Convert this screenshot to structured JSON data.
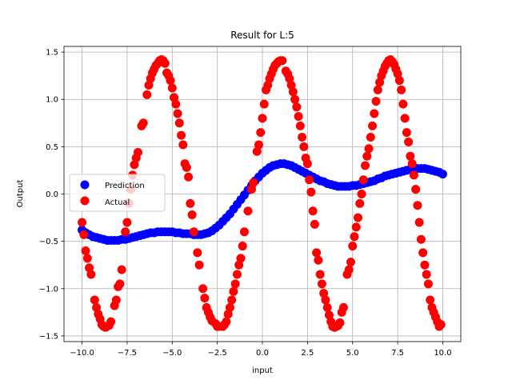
{
  "chart_data": {
    "type": "scatter",
    "title": "Result for L:5",
    "xlabel": "input",
    "ylabel": "Output",
    "xlim": [
      -11.0,
      11.0
    ],
    "ylim": [
      -1.56,
      1.56
    ],
    "xticks": [
      -10.0,
      -7.5,
      -5.0,
      -2.5,
      0.0,
      2.5,
      5.0,
      7.5,
      10.0
    ],
    "xtick_labels": [
      "−10.0",
      "−7.5",
      "−5.0",
      "−2.5",
      "0.0",
      "2.5",
      "5.0",
      "7.5",
      "10.0"
    ],
    "yticks": [
      -1.5,
      -1.0,
      -0.5,
      0.0,
      0.5,
      1.0,
      1.5
    ],
    "ytick_labels": [
      "−1.5",
      "−1.0",
      "−0.5",
      "0.0",
      "0.5",
      "1.0",
      "1.5"
    ],
    "grid": true,
    "legend_position": "center-left",
    "series": [
      {
        "name": "Prediction",
        "color": "#0000ff",
        "points": [
          [
            -10.0,
            -0.38
          ],
          [
            -9.8,
            -0.41
          ],
          [
            -9.6,
            -0.43
          ],
          [
            -9.4,
            -0.45
          ],
          [
            -9.2,
            -0.46
          ],
          [
            -9.0,
            -0.47
          ],
          [
            -8.8,
            -0.48
          ],
          [
            -8.6,
            -0.49
          ],
          [
            -8.4,
            -0.49
          ],
          [
            -8.2,
            -0.49
          ],
          [
            -8.0,
            -0.49
          ],
          [
            -7.8,
            -0.48
          ],
          [
            -7.6,
            -0.48
          ],
          [
            -7.4,
            -0.47
          ],
          [
            -7.2,
            -0.46
          ],
          [
            -7.0,
            -0.45
          ],
          [
            -6.8,
            -0.44
          ],
          [
            -6.6,
            -0.43
          ],
          [
            -6.4,
            -0.42
          ],
          [
            -6.2,
            -0.41
          ],
          [
            -6.0,
            -0.41
          ],
          [
            -5.8,
            -0.4
          ],
          [
            -5.6,
            -0.4
          ],
          [
            -5.4,
            -0.4
          ],
          [
            -5.2,
            -0.4
          ],
          [
            -5.0,
            -0.4
          ],
          [
            -4.8,
            -0.41
          ],
          [
            -4.6,
            -0.41
          ],
          [
            -4.4,
            -0.42
          ],
          [
            -4.2,
            -0.42
          ],
          [
            -4.0,
            -0.42
          ],
          [
            -3.8,
            -0.43
          ],
          [
            -3.6,
            -0.43
          ],
          [
            -3.4,
            -0.43
          ],
          [
            -3.2,
            -0.42
          ],
          [
            -3.0,
            -0.41
          ],
          [
            -2.8,
            -0.39
          ],
          [
            -2.6,
            -0.36
          ],
          [
            -2.4,
            -0.33
          ],
          [
            -2.2,
            -0.29
          ],
          [
            -2.0,
            -0.25
          ],
          [
            -1.8,
            -0.21
          ],
          [
            -1.6,
            -0.16
          ],
          [
            -1.4,
            -0.11
          ],
          [
            -1.2,
            -0.06
          ],
          [
            -1.0,
            -0.01
          ],
          [
            -0.8,
            0.04
          ],
          [
            -0.6,
            0.09
          ],
          [
            -0.4,
            0.14
          ],
          [
            -0.2,
            0.18
          ],
          [
            0.0,
            0.22
          ],
          [
            0.2,
            0.25
          ],
          [
            0.4,
            0.28
          ],
          [
            0.6,
            0.3
          ],
          [
            0.8,
            0.31
          ],
          [
            1.0,
            0.32
          ],
          [
            1.2,
            0.32
          ],
          [
            1.4,
            0.31
          ],
          [
            1.6,
            0.3
          ],
          [
            1.8,
            0.28
          ],
          [
            2.0,
            0.26
          ],
          [
            2.2,
            0.24
          ],
          [
            2.4,
            0.22
          ],
          [
            2.6,
            0.2
          ],
          [
            2.8,
            0.18
          ],
          [
            3.0,
            0.16
          ],
          [
            3.2,
            0.14
          ],
          [
            3.4,
            0.13
          ],
          [
            3.6,
            0.11
          ],
          [
            3.8,
            0.1
          ],
          [
            4.0,
            0.09
          ],
          [
            4.2,
            0.08
          ],
          [
            4.4,
            0.08
          ],
          [
            4.6,
            0.08
          ],
          [
            4.8,
            0.08
          ],
          [
            5.0,
            0.09
          ],
          [
            5.2,
            0.09
          ],
          [
            5.4,
            0.1
          ],
          [
            5.6,
            0.11
          ],
          [
            5.8,
            0.12
          ],
          [
            6.0,
            0.13
          ],
          [
            6.2,
            0.14
          ],
          [
            6.4,
            0.16
          ],
          [
            6.6,
            0.17
          ],
          [
            6.8,
            0.19
          ],
          [
            7.0,
            0.2
          ],
          [
            7.2,
            0.21
          ],
          [
            7.4,
            0.22
          ],
          [
            7.6,
            0.23
          ],
          [
            7.8,
            0.24
          ],
          [
            8.0,
            0.25
          ],
          [
            8.2,
            0.26
          ],
          [
            8.4,
            0.27
          ],
          [
            8.6,
            0.27
          ],
          [
            8.8,
            0.27
          ],
          [
            9.0,
            0.27
          ],
          [
            9.2,
            0.26
          ],
          [
            9.4,
            0.25
          ],
          [
            9.6,
            0.24
          ],
          [
            9.8,
            0.23
          ],
          [
            10.0,
            0.21
          ]
        ]
      },
      {
        "name": "Actual",
        "color": "#ff0000",
        "points": [
          [
            -10.0,
            -0.3
          ],
          [
            -9.9,
            -0.43
          ],
          [
            -9.8,
            -0.6
          ],
          [
            -9.7,
            -0.68
          ],
          [
            -9.6,
            -0.78
          ],
          [
            -9.5,
            -0.85
          ],
          [
            -9.3,
            -1.12
          ],
          [
            -9.2,
            -1.2
          ],
          [
            -9.1,
            -1.27
          ],
          [
            -9.0,
            -1.32
          ],
          [
            -8.9,
            -1.38
          ],
          [
            -8.8,
            -1.4
          ],
          [
            -8.7,
            -1.41
          ],
          [
            -8.5,
            -1.39
          ],
          [
            -8.4,
            -1.35
          ],
          [
            -8.2,
            -1.18
          ],
          [
            -8.1,
            -1.12
          ],
          [
            -8.0,
            -0.98
          ],
          [
            -7.9,
            -0.95
          ],
          [
            -7.8,
            -0.8
          ],
          [
            -7.6,
            -0.4
          ],
          [
            -7.5,
            -0.3
          ],
          [
            -7.4,
            -0.1
          ],
          [
            -7.3,
            0.05
          ],
          [
            -7.2,
            0.2
          ],
          [
            -7.1,
            0.31
          ],
          [
            -7.0,
            0.38
          ],
          [
            -6.9,
            0.44
          ],
          [
            -6.7,
            0.72
          ],
          [
            -6.6,
            0.75
          ],
          [
            -6.4,
            1.05
          ],
          [
            -6.3,
            1.15
          ],
          [
            -6.2,
            1.22
          ],
          [
            -6.1,
            1.28
          ],
          [
            -6.0,
            1.32
          ],
          [
            -5.9,
            1.36
          ],
          [
            -5.8,
            1.38
          ],
          [
            -5.7,
            1.41
          ],
          [
            -5.6,
            1.42
          ],
          [
            -5.5,
            1.41
          ],
          [
            -5.4,
            1.38
          ],
          [
            -5.3,
            1.28
          ],
          [
            -5.2,
            1.25
          ],
          [
            -5.1,
            1.2
          ],
          [
            -5.0,
            1.12
          ],
          [
            -4.9,
            1.02
          ],
          [
            -4.8,
            0.95
          ],
          [
            -4.7,
            0.85
          ],
          [
            -4.6,
            0.75
          ],
          [
            -4.5,
            0.62
          ],
          [
            -4.4,
            0.52
          ],
          [
            -4.3,
            0.32
          ],
          [
            -4.2,
            0.28
          ],
          [
            -4.1,
            0.18
          ],
          [
            -4.0,
            -0.1
          ],
          [
            -3.9,
            -0.22
          ],
          [
            -3.8,
            -0.4
          ],
          [
            -3.6,
            -0.62
          ],
          [
            -3.5,
            -0.75
          ],
          [
            -3.3,
            -1.0
          ],
          [
            -3.2,
            -1.1
          ],
          [
            -3.1,
            -1.2
          ],
          [
            -3.0,
            -1.25
          ],
          [
            -2.9,
            -1.3
          ],
          [
            -2.8,
            -1.34
          ],
          [
            -2.6,
            -1.37
          ],
          [
            -2.5,
            -1.4
          ],
          [
            -2.4,
            -1.4
          ],
          [
            -2.2,
            -1.4
          ],
          [
            -2.1,
            -1.38
          ],
          [
            -2.0,
            -1.35
          ],
          [
            -1.9,
            -1.27
          ],
          [
            -1.8,
            -1.2
          ],
          [
            -1.7,
            -1.12
          ],
          [
            -1.6,
            -1.03
          ],
          [
            -1.5,
            -0.95
          ],
          [
            -1.4,
            -0.85
          ],
          [
            -1.3,
            -0.75
          ],
          [
            -1.2,
            -0.68
          ],
          [
            -1.1,
            -0.55
          ],
          [
            -1.0,
            -0.4
          ],
          [
            -0.8,
            -0.18
          ],
          [
            -0.6,
            0.05
          ],
          [
            -0.5,
            0.12
          ],
          [
            -0.3,
            0.45
          ],
          [
            -0.2,
            0.52
          ],
          [
            -0.1,
            0.65
          ],
          [
            0.0,
            0.8
          ],
          [
            0.1,
            0.95
          ],
          [
            0.2,
            1.1
          ],
          [
            0.3,
            1.15
          ],
          [
            0.4,
            1.22
          ],
          [
            0.5,
            1.27
          ],
          [
            0.6,
            1.32
          ],
          [
            0.7,
            1.36
          ],
          [
            0.8,
            1.38
          ],
          [
            0.9,
            1.4
          ],
          [
            1.0,
            1.41
          ],
          [
            1.1,
            1.41
          ],
          [
            1.3,
            1.3
          ],
          [
            1.4,
            1.27
          ],
          [
            1.5,
            1.22
          ],
          [
            1.6,
            1.15
          ],
          [
            1.7,
            1.08
          ],
          [
            1.8,
            1.0
          ],
          [
            1.9,
            0.92
          ],
          [
            2.0,
            0.82
          ],
          [
            2.1,
            0.72
          ],
          [
            2.2,
            0.6
          ],
          [
            2.3,
            0.5
          ],
          [
            2.4,
            0.38
          ],
          [
            2.5,
            0.32
          ],
          [
            2.6,
            0.15
          ],
          [
            2.7,
            0.02
          ],
          [
            2.8,
            -0.18
          ],
          [
            2.9,
            -0.32
          ],
          [
            3.0,
            -0.62
          ],
          [
            3.1,
            -0.7
          ],
          [
            3.2,
            -0.85
          ],
          [
            3.3,
            -0.95
          ],
          [
            3.4,
            -1.05
          ],
          [
            3.5,
            -1.12
          ],
          [
            3.6,
            -1.2
          ],
          [
            3.7,
            -1.28
          ],
          [
            3.8,
            -1.35
          ],
          [
            3.9,
            -1.4
          ],
          [
            4.0,
            -1.41
          ],
          [
            4.1,
            -1.4
          ],
          [
            4.2,
            -1.39
          ],
          [
            4.3,
            -1.36
          ],
          [
            4.4,
            -1.25
          ],
          [
            4.5,
            -1.2
          ],
          [
            4.7,
            -0.85
          ],
          [
            4.8,
            -0.8
          ],
          [
            4.9,
            -0.72
          ],
          [
            5.0,
            -0.55
          ],
          [
            5.1,
            -0.45
          ],
          [
            5.2,
            -0.35
          ],
          [
            5.3,
            -0.25
          ],
          [
            5.4,
            -0.1
          ],
          [
            5.5,
            0.0
          ],
          [
            5.6,
            0.15
          ],
          [
            5.7,
            0.3
          ],
          [
            5.8,
            0.4
          ],
          [
            5.9,
            0.48
          ],
          [
            6.0,
            0.6
          ],
          [
            6.1,
            0.72
          ],
          [
            6.2,
            0.85
          ],
          [
            6.3,
            0.98
          ],
          [
            6.4,
            1.1
          ],
          [
            6.5,
            1.18
          ],
          [
            6.6,
            1.25
          ],
          [
            6.7,
            1.3
          ],
          [
            6.8,
            1.35
          ],
          [
            6.9,
            1.38
          ],
          [
            7.0,
            1.41
          ],
          [
            7.1,
            1.42
          ],
          [
            7.2,
            1.4
          ],
          [
            7.3,
            1.37
          ],
          [
            7.4,
            1.32
          ],
          [
            7.5,
            1.27
          ],
          [
            7.6,
            1.2
          ],
          [
            7.7,
            1.1
          ],
          [
            7.8,
            0.95
          ],
          [
            7.9,
            0.8
          ],
          [
            8.0,
            0.65
          ],
          [
            8.1,
            0.55
          ],
          [
            8.2,
            0.4
          ],
          [
            8.3,
            0.32
          ],
          [
            8.4,
            0.2
          ],
          [
            8.5,
            0.05
          ],
          [
            8.6,
            -0.12
          ],
          [
            8.7,
            -0.3
          ],
          [
            8.8,
            -0.48
          ],
          [
            8.9,
            -0.62
          ],
          [
            9.0,
            -0.75
          ],
          [
            9.1,
            -0.85
          ],
          [
            9.2,
            -0.95
          ],
          [
            9.3,
            -1.12
          ],
          [
            9.4,
            -1.2
          ],
          [
            9.5,
            -1.25
          ],
          [
            9.6,
            -1.3
          ],
          [
            9.7,
            -1.35
          ],
          [
            9.8,
            -1.4
          ],
          [
            9.9,
            -1.38
          ]
        ]
      }
    ]
  }
}
